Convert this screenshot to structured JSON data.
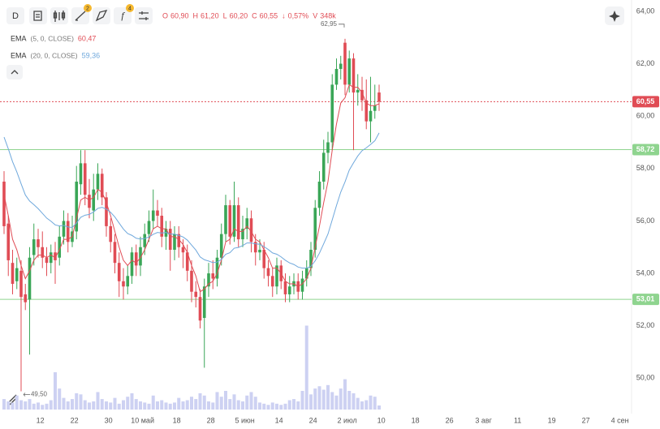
{
  "chart_data": {
    "type": "candlestick",
    "toolbar": {
      "interval": "D",
      "badge_drawings": "2",
      "badge_indicators": "4"
    },
    "header": [
      {
        "key": "O",
        "value": "60,90"
      },
      {
        "key": "H",
        "value": "61,20"
      },
      {
        "key": "L",
        "value": "60,20"
      },
      {
        "key": "C",
        "value": "60,55"
      },
      {
        "key": "↓",
        "value": "0,57%"
      },
      {
        "key": "V",
        "value": "348k"
      }
    ],
    "up_color": "#3aa657",
    "down_color": "#e04c55",
    "volume_color": "#cdd1f2",
    "x": [
      0,
      1,
      2,
      3,
      4,
      5,
      6,
      7,
      8,
      9,
      10,
      11,
      12,
      13,
      14,
      15,
      16,
      17,
      18,
      19,
      20,
      21,
      22,
      23,
      24,
      25,
      26,
      27,
      28,
      29,
      30,
      31,
      32,
      33,
      34,
      35,
      36,
      37,
      38,
      39,
      40,
      41,
      42,
      43,
      44,
      45,
      46,
      47,
      48,
      49,
      50,
      51,
      52,
      53,
      54,
      55,
      56,
      57,
      58,
      59,
      60,
      61,
      62,
      63,
      64,
      65,
      66,
      67,
      68,
      69,
      70,
      71,
      72,
      73,
      74,
      75,
      76,
      77,
      78,
      79,
      80,
      81,
      82,
      83,
      84,
      85,
      86,
      87,
      88
    ],
    "open": [
      57.5,
      55.9,
      54.4,
      53.7,
      54.1,
      53.2,
      53.0,
      54.7,
      55.3,
      55.0,
      54.6,
      54.4,
      54.8,
      54.6,
      55.4,
      56.0,
      55.2,
      55.6,
      57.4,
      58.2,
      57.0,
      56.4,
      57.2,
      57.8,
      56.9,
      55.8,
      55.2,
      54.4,
      53.7,
      53.5,
      53.9,
      54.8,
      54.3,
      55.0,
      55.5,
      56.0,
      56.4,
      56.2,
      55.4,
      55.7,
      54.9,
      55.5,
      55.0,
      54.8,
      54.1,
      53.3,
      53.1,
      52.3,
      53.5,
      54.0,
      53.8,
      54.6,
      55.5,
      56.6,
      55.4,
      56.6,
      55.3,
      55.7,
      56.1,
      55.2,
      54.8,
      54.9,
      54.2,
      53.9,
      53.5,
      54.3,
      53.7,
      53.2,
      53.5,
      53.7,
      53.3,
      53.8,
      54.2,
      54.9,
      56.5,
      57.5,
      58.6,
      59.0,
      61.2,
      61.8,
      62.8,
      61.2,
      62.2,
      60.9,
      61.0,
      60.6,
      59.8,
      60.2,
      60.9
    ],
    "high": [
      57.9,
      56.2,
      54.9,
      54.6,
      54.5,
      53.6,
      55.0,
      55.9,
      55.7,
      55.6,
      55.0,
      55.1,
      55.2,
      55.8,
      56.4,
      56.3,
      56.2,
      58.1,
      58.7,
      58.7,
      57.6,
      57.8,
      58.2,
      58.0,
      57.1,
      56.1,
      55.5,
      54.8,
      54.2,
      54.3,
      55.0,
      55.1,
      55.4,
      55.9,
      56.4,
      57.2,
      56.8,
      56.5,
      56.0,
      56.0,
      55.8,
      55.8,
      55.3,
      55.1,
      54.5,
      53.7,
      53.4,
      53.8,
      54.4,
      54.5,
      54.9,
      55.9,
      57.0,
      56.8,
      57.5,
      56.9,
      56.2,
      56.5,
      56.4,
      55.5,
      55.3,
      55.2,
      54.5,
      54.2,
      54.6,
      54.5,
      54.0,
      53.9,
      54.0,
      54.0,
      54.1,
      54.5,
      55.2,
      56.8,
      57.9,
      59.1,
      59.4,
      61.6,
      62.2,
      62.3,
      62.95,
      62.5,
      62.4,
      61.6,
      61.5,
      61.4,
      61.5,
      61.2,
      61.2
    ],
    "low": [
      55.5,
      53.9,
      53.2,
      53.4,
      49.5,
      52.6,
      50.9,
      54.3,
      54.6,
      54.2,
      53.9,
      54.0,
      53.6,
      54.3,
      55.1,
      54.8,
      55.0,
      55.3,
      57.0,
      56.6,
      56.1,
      56.0,
      56.8,
      56.6,
      55.4,
      54.8,
      54.0,
      53.1,
      53.0,
      53.2,
      53.6,
      53.9,
      53.9,
      54.7,
      55.2,
      55.7,
      55.8,
      55.0,
      54.9,
      54.1,
      54.5,
      54.6,
      54.2,
      53.7,
      52.9,
      52.7,
      51.9,
      50.4,
      53.1,
      53.4,
      53.5,
      54.3,
      55.2,
      55.1,
      55.2,
      55.0,
      55.0,
      55.3,
      54.8,
      54.3,
      54.5,
      53.8,
      53.5,
      53.1,
      53.2,
      53.4,
      52.9,
      52.9,
      53.2,
      53.0,
      53.0,
      53.5,
      53.9,
      54.6,
      56.2,
      57.2,
      58.2,
      58.7,
      61.0,
      61.4,
      60.8,
      60.9,
      58.7,
      60.4,
      60.2,
      59.5,
      59.0,
      59.9,
      60.2
    ],
    "close": [
      55.8,
      54.5,
      53.6,
      54.2,
      53.1,
      52.9,
      54.6,
      55.3,
      55.0,
      54.6,
      54.4,
      54.8,
      54.5,
      55.4,
      56.0,
      55.2,
      55.6,
      57.5,
      58.2,
      57.0,
      56.5,
      57.2,
      57.8,
      56.9,
      55.8,
      55.2,
      54.4,
      53.7,
      53.5,
      53.9,
      54.8,
      54.3,
      55.0,
      55.5,
      56.0,
      56.4,
      56.2,
      55.4,
      55.7,
      54.9,
      55.5,
      55.0,
      54.8,
      54.1,
      53.3,
      53.1,
      52.2,
      53.5,
      54.0,
      53.8,
      54.6,
      55.5,
      56.6,
      55.4,
      56.6,
      55.3,
      55.7,
      56.1,
      55.2,
      54.8,
      54.9,
      54.2,
      53.9,
      53.5,
      54.3,
      53.7,
      53.2,
      53.5,
      53.7,
      53.3,
      53.8,
      54.2,
      54.9,
      56.5,
      57.5,
      58.6,
      59.0,
      61.2,
      61.8,
      62.0,
      61.2,
      62.2,
      60.9,
      61.0,
      60.6,
      59.8,
      60.2,
      60.4,
      60.55
    ],
    "volume": [
      900,
      700,
      600,
      1200,
      800,
      700,
      900,
      500,
      600,
      400,
      500,
      800,
      3200,
      1800,
      1000,
      700,
      900,
      1400,
      1300,
      800,
      600,
      700,
      1500,
      900,
      700,
      600,
      1000,
      500,
      800,
      1100,
      1400,
      900,
      700,
      600,
      500,
      1200,
      700,
      800,
      600,
      500,
      600,
      1000,
      700,
      800,
      1100,
      900,
      1400,
      1200,
      700,
      600,
      1500,
      1100,
      1600,
      900,
      1300,
      800,
      700,
      1200,
      1500,
      1100,
      600,
      500,
      400,
      600,
      500,
      400,
      500,
      800,
      900,
      700,
      1600,
      7200,
      1300,
      1800,
      2000,
      1700,
      2100,
      1500,
      1200,
      1800,
      2600,
      1600,
      1400,
      1000,
      700,
      800,
      1200,
      1100,
      348
    ],
    "vlim": [
      0,
      8000
    ],
    "indicators": [
      {
        "name": "EMA",
        "params": "(5, 0, CLOSE)",
        "color": "#e04c55",
        "value_label": "60,47",
        "values": [
          57.0,
          56.2,
          55.3,
          54.9,
          54.3,
          53.8,
          54.1,
          54.5,
          54.7,
          54.7,
          54.6,
          54.7,
          54.6,
          54.9,
          55.3,
          55.3,
          55.4,
          56.1,
          56.8,
          56.9,
          56.8,
          56.9,
          57.2,
          57.1,
          56.7,
          56.2,
          55.6,
          55.0,
          54.5,
          54.3,
          54.5,
          54.4,
          54.6,
          54.9,
          55.3,
          55.7,
          55.8,
          55.7,
          55.7,
          55.4,
          55.4,
          55.3,
          55.1,
          54.8,
          54.3,
          53.9,
          53.3,
          53.4,
          53.6,
          53.7,
          54.0,
          54.5,
          55.2,
          55.3,
          55.7,
          55.6,
          55.6,
          55.8,
          55.6,
          55.3,
          55.2,
          54.9,
          54.6,
          54.2,
          54.2,
          54.0,
          53.7,
          53.6,
          53.6,
          53.5,
          53.6,
          53.8,
          54.2,
          55.0,
          55.8,
          56.7,
          57.5,
          58.7,
          59.7,
          60.5,
          60.7,
          61.2,
          61.1,
          61.1,
          60.9,
          60.5,
          60.4,
          60.4,
          60.47
        ]
      },
      {
        "name": "EMA",
        "params": "(20, 0, CLOSE)",
        "color": "#6fa8dc",
        "value_label": "59,36",
        "values": [
          59.2,
          58.75,
          58.26,
          57.87,
          57.42,
          56.99,
          56.76,
          56.62,
          56.47,
          56.29,
          56.11,
          55.99,
          55.85,
          55.81,
          55.83,
          55.77,
          55.75,
          55.92,
          56.14,
          56.22,
          56.25,
          56.34,
          56.48,
          56.52,
          56.45,
          56.33,
          56.15,
          55.92,
          55.69,
          55.52,
          55.45,
          55.34,
          55.31,
          55.33,
          55.39,
          55.49,
          55.56,
          55.54,
          55.56,
          55.5,
          55.5,
          55.45,
          55.39,
          55.27,
          55.08,
          54.89,
          54.63,
          54.52,
          54.47,
          54.41,
          54.43,
          54.53,
          54.73,
          54.79,
          54.96,
          54.99,
          55.06,
          55.16,
          55.16,
          55.13,
          55.11,
          55.02,
          54.91,
          54.78,
          54.73,
          54.63,
          54.5,
          54.4,
          54.34,
          54.24,
          54.2,
          54.2,
          54.27,
          54.48,
          54.77,
          55.13,
          55.5,
          56.04,
          56.59,
          57.1,
          57.49,
          57.94,
          58.22,
          58.48,
          58.68,
          58.79,
          58.92,
          59.06,
          59.36
        ]
      }
    ],
    "levels_color": "#8fd48f",
    "levels": [
      {
        "value": 58.72,
        "label": "58,72"
      },
      {
        "value": 53.01,
        "label": "53,01"
      }
    ],
    "last_price": {
      "value": 60.55,
      "label": "60,55"
    },
    "max_label": "62,95",
    "min_label": "49,50",
    "xlim": [
      -0.95,
      147.24
    ],
    "xticks": [
      {
        "value": 8.5,
        "label": "12"
      },
      {
        "value": 16.5,
        "label": "22"
      },
      {
        "value": 24.5,
        "label": "30"
      },
      {
        "value": 32.5,
        "label": "10 май"
      },
      {
        "value": 40.5,
        "label": "18"
      },
      {
        "value": 48.5,
        "label": "28"
      },
      {
        "value": 56.5,
        "label": "5 июн"
      },
      {
        "value": 64.5,
        "label": "14"
      },
      {
        "value": 72.5,
        "label": "24"
      },
      {
        "value": 80.5,
        "label": "2 июл"
      },
      {
        "value": 88.5,
        "label": "10"
      },
      {
        "value": 96.5,
        "label": "18"
      },
      {
        "value": 104.5,
        "label": "26"
      },
      {
        "value": 112.5,
        "label": "3 авг"
      },
      {
        "value": 120.5,
        "label": "11"
      },
      {
        "value": 128.5,
        "label": "19"
      },
      {
        "value": 136.5,
        "label": "27"
      },
      {
        "value": 144.5,
        "label": "4 сен"
      }
    ],
    "ylim": [
      48.65,
      64.43
    ],
    "yticks": [
      {
        "value": 64,
        "label": "64,00"
      },
      {
        "value": 62,
        "label": "62,00"
      },
      {
        "value": 60,
        "label": "60,00"
      },
      {
        "value": 58,
        "label": "58,00"
      },
      {
        "value": 56,
        "label": "56,00"
      },
      {
        "value": 54,
        "label": "54,00"
      },
      {
        "value": 52,
        "label": "52,00"
      },
      {
        "value": 50,
        "label": "50,00"
      }
    ],
    "grid": false
  }
}
